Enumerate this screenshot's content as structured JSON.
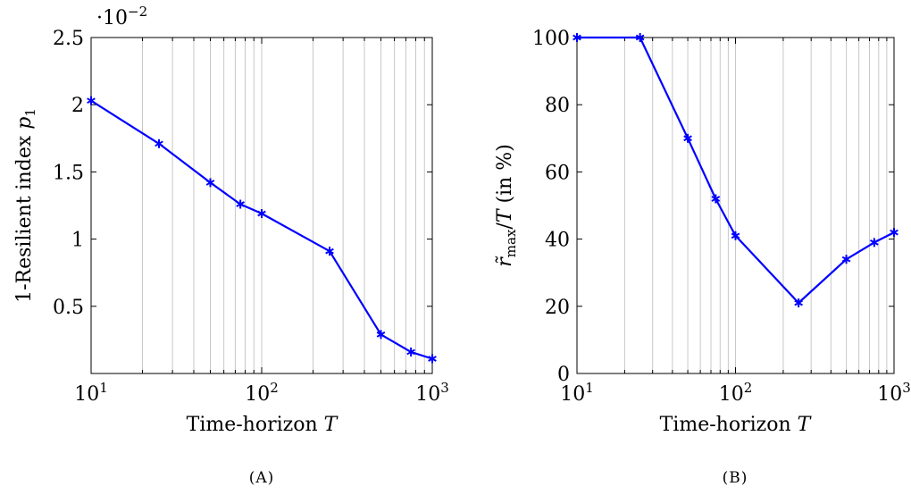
{
  "panels": [
    {
      "caption": "(A)",
      "xlabel": "Time-horizon T",
      "ylabel": "1-Resilient index p1",
      "scale_note": {
        "base": "·10",
        "exp": "−2"
      },
      "yticks": [
        {
          "v": 0.5,
          "label": "0.5"
        },
        {
          "v": 1,
          "label": "1"
        },
        {
          "v": 1.5,
          "label": "1.5"
        },
        {
          "v": 2,
          "label": "2"
        },
        {
          "v": 2.5,
          "label": "2.5"
        }
      ],
      "xticks": [
        {
          "v": 10,
          "base": "10",
          "exp": "1"
        },
        {
          "v": 100,
          "base": "10",
          "exp": "2"
        },
        {
          "v": 1000,
          "base": "10",
          "exp": "3"
        }
      ]
    },
    {
      "caption": "(B)",
      "xlabel": "Time-horizon T",
      "ylabel": "r̃max/T (in %)",
      "yticks": [
        {
          "v": 0,
          "label": "0"
        },
        {
          "v": 20,
          "label": "20"
        },
        {
          "v": 40,
          "label": "40"
        },
        {
          "v": 60,
          "label": "60"
        },
        {
          "v": 80,
          "label": "80"
        },
        {
          "v": 100,
          "label": "100"
        }
      ],
      "xticks": [
        {
          "v": 10,
          "base": "10",
          "exp": "1"
        },
        {
          "v": 100,
          "base": "10",
          "exp": "2"
        },
        {
          "v": 1000,
          "base": "10",
          "exp": "3"
        }
      ]
    }
  ],
  "chart_data": [
    {
      "type": "line",
      "xscale": "log",
      "xlim": [
        10,
        1000
      ],
      "ylim": [
        0,
        2.5
      ],
      "grid": "vertical log grid lines",
      "color": "#0000ff",
      "marker": "asterisk",
      "x": [
        10,
        25,
        50,
        75,
        100,
        250,
        500,
        750,
        1000
      ],
      "y": [
        2.03,
        1.71,
        1.42,
        1.26,
        1.19,
        0.91,
        0.29,
        0.16,
        0.11
      ]
    },
    {
      "type": "line",
      "xscale": "log",
      "xlim": [
        10,
        1000
      ],
      "ylim": [
        0,
        100
      ],
      "grid": "vertical log grid lines",
      "color": "#0000ff",
      "marker": "asterisk",
      "x": [
        10,
        25,
        50,
        75,
        100,
        250,
        500,
        750,
        1000
      ],
      "y": [
        100,
        100,
        70,
        52,
        41,
        21,
        34,
        39,
        42
      ]
    }
  ]
}
